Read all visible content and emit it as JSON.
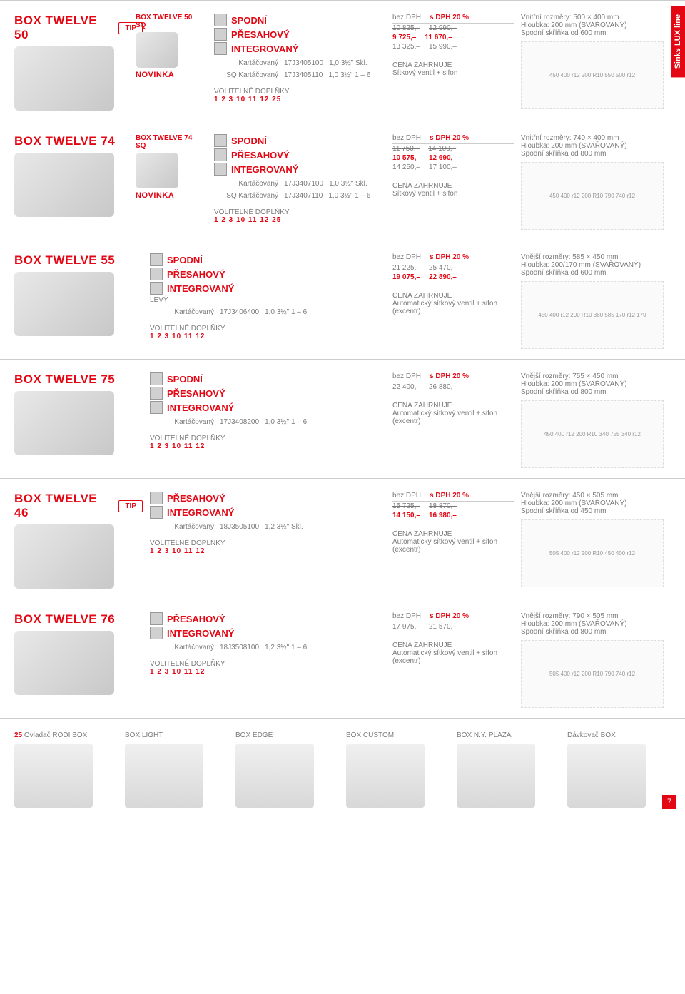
{
  "sidebar": "Sinks LUX line",
  "page_number": "7",
  "labels": {
    "tip": "TIP",
    "novinka": "NOVINKA",
    "kart": "Kartáčovaný",
    "sq_kart": "SQ Kartáčovaný",
    "acc_title": "VOLITELNÉ DOPLŇKY",
    "inc_title": "CENA ZAHRNUJE",
    "bez_dph": "bez DPH",
    "s_dph": "s DPH 20 %",
    "skl": "Skl.",
    "range": "1 – 6",
    "levy": "LEVÝ"
  },
  "mountings": {
    "spodni": "SPODNÍ",
    "presahovy": "PŘESAHOVÝ",
    "integrovany": "INTEGROVANÝ"
  },
  "products": [
    {
      "title": "BOX TWELVE 50",
      "sq_title": "BOX TWELVE 50 SQ",
      "tip": true,
      "novinka": true,
      "mounts": [
        "spodni",
        "presahovy",
        "integrovany"
      ],
      "rows": [
        {
          "l": "Kartáčovaný",
          "code": "17J3405100",
          "t": "1,0",
          "d": "3½\"",
          "r": "Skl.",
          "p1s": "10 825,–",
          "p2s": "12 990,–",
          "p1": "9 725,–",
          "p2": "11 670,–"
        },
        {
          "l": "SQ Kartáčovaný",
          "code": "17J3405110",
          "t": "1,0",
          "d": "3½\"",
          "r": "1 – 6",
          "p1": "13 325,–",
          "p2": "15 990,–"
        }
      ],
      "acc": "1  2  3  10  11  12  25",
      "inc": "Sítkový ventil + sifon",
      "dims": [
        "Vnitřní rozměry: 500 × 400 mm",
        "Hloubka: 200 mm (SVAŘOVANÝ)",
        "Spodní skříňka od 600 mm"
      ],
      "dim_labels": "450 400 r12 200 R10 550 500 r12"
    },
    {
      "title": "BOX TWELVE 74",
      "sq_title": "BOX TWELVE 74 SQ",
      "novinka": true,
      "mounts": [
        "spodni",
        "presahovy",
        "integrovany"
      ],
      "rows": [
        {
          "l": "Kartáčovaný",
          "code": "17J3407100",
          "t": "1,0",
          "d": "3½\"",
          "r": "Skl.",
          "p1s": "11 750,–",
          "p2s": "14 100,–",
          "p1": "10 575,–",
          "p2": "12 690,–"
        },
        {
          "l": "SQ Kartáčovaný",
          "code": "17J3407110",
          "t": "1,0",
          "d": "3½\"",
          "r": "1 – 6",
          "p1": "14 250,–",
          "p2": "17 100,–"
        }
      ],
      "acc": "1  2  3  10  11  12  25",
      "inc": "Sítkový ventil + sifon",
      "dims": [
        "Vnitřní rozměry: 740 × 400 mm",
        "Hloubka: 200 mm (SVAŘOVANÝ)",
        "Spodní skříňka od 800 mm"
      ],
      "dim_labels": "450 400 r12 200 R10 790 740 r12"
    },
    {
      "title": "BOX TWELVE 55",
      "mounts": [
        "spodni",
        "presahovy",
        "integrovany"
      ],
      "sub": "LEVÝ",
      "rows": [
        {
          "l": "Kartáčovaný",
          "code": "17J3406400",
          "t": "1,0",
          "d": "3½\"",
          "r": "1 – 6",
          "p1s": "21 225,–",
          "p2s": "25 470,–",
          "p1": "19 075,–",
          "p2": "22 890,–"
        }
      ],
      "acc": "1  2  3  10  11  12",
      "inc": "Automatický sítkový ventil + sifon (excentr)",
      "dims": [
        "Vnější rozměry: 585 × 450 mm",
        "Hloubka: 200/170 mm (SVAŘOVANÝ)",
        "Spodní skříňka od 600 mm"
      ],
      "dim_labels": "450 400 r12 200 R10 380 585 170 r12 170"
    },
    {
      "title": "BOX TWELVE 75",
      "mounts": [
        "spodni",
        "presahovy",
        "integrovany"
      ],
      "rows": [
        {
          "l": "Kartáčovaný",
          "code": "17J3408200",
          "t": "1,0",
          "d": "3½\"",
          "r": "1 – 6",
          "p1": "22 400,–",
          "p2": "26 880,–"
        }
      ],
      "acc": "1  2  3  10  11  12",
      "inc": "Automatický sítkový ventil + sifon (excentr)",
      "dims": [
        "Vnější rozměry: 755 × 450 mm",
        "Hloubka: 200 mm (SVAŘOVANÝ)",
        "Spodní skříňka od 800 mm"
      ],
      "dim_labels": "450 400 r12 200 R10 340 755 340 r12"
    },
    {
      "title": "BOX TWELVE 46",
      "tip": true,
      "mounts": [
        "presahovy",
        "integrovany"
      ],
      "rows": [
        {
          "l": "Kartáčovaný",
          "code": "18J3505100",
          "t": "1,2",
          "d": "3½\"",
          "r": "Skl.",
          "p1s": "15 725,–",
          "p2s": "18 870,–",
          "p1": "14 150,–",
          "p2": "16 980,–"
        }
      ],
      "acc": "1  2  3  10  11  12",
      "inc": "Automatický sítkový ventil + sifon (excentr)",
      "dims": [
        "Vnější rozměry: 450 × 505 mm",
        "Hloubka: 200 mm (SVAŘOVANÝ)",
        "Spodní skříňka od 450 mm"
      ],
      "dim_labels": "505 400 r12 200 R10 450 400 r12"
    },
    {
      "title": "BOX TWELVE 76",
      "mounts": [
        "presahovy",
        "integrovany"
      ],
      "rows": [
        {
          "l": "Kartáčovaný",
          "code": "18J3508100",
          "t": "1,2",
          "d": "3½\"",
          "r": "1 – 6",
          "p1": "17 975,–",
          "p2": "21 570,–"
        }
      ],
      "acc": "1  2  3  10  11  12",
      "inc": "Automatický sítkový ventil + sifon (excentr)",
      "dims": [
        "Vnější rozměry: 790 × 505 mm",
        "Hloubka: 200 mm (SVAŘOVANÝ)",
        "Spodní skříňka od 800 mm"
      ],
      "dim_labels": "505 400 r12 200 R10 790 740 r12"
    }
  ],
  "footer": [
    {
      "num": "25",
      "label": "Ovladač RODI BOX"
    },
    {
      "label": "BOX LIGHT"
    },
    {
      "label": "BOX EDGE"
    },
    {
      "label": "BOX CUSTOM"
    },
    {
      "label": "BOX N.Y. PLAZA"
    },
    {
      "label": "Dávkovač BOX"
    }
  ]
}
